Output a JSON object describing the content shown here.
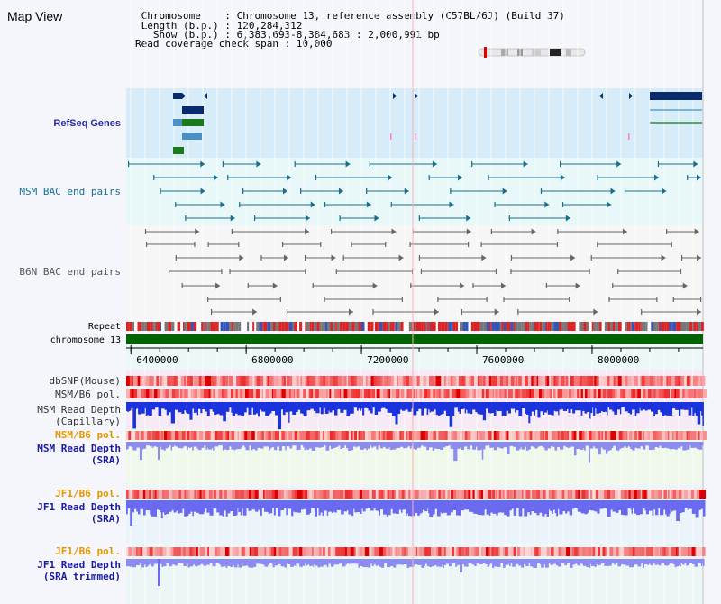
{
  "header": {
    "title": "Map View",
    "info_lines": [
      " Chromosome    : Chromosome 13, reference assembly (C57BL/6J) (Build 37)",
      " Length (b.p.) : 120,284,312",
      "   Show (b.p.) : 6,383,693-8,384,683 : 2,000,991 bp",
      "Read coverage check span : 10,000"
    ]
  },
  "tracks": {
    "refseq": "RefSeq Genes",
    "msm_bac": "MSM BAC end pairs",
    "b6n_bac": "B6N BAC end pairs",
    "repeat": "Repeat",
    "chromosome": "chromosome 13",
    "dbsnp": "dbSNP(Mouse)",
    "msm_b6_pol_1": "MSM/B6 pol.",
    "msm_read_depth_cap": "MSM Read Depth\n(Capillary)",
    "msm_b6_pol_2": "MSM/B6 pol.",
    "msm_read_depth_sra": "MSM Read Depth\n(SRA)",
    "jf1_b6_pol_1": "JF1/B6 pol.",
    "jf1_read_depth_sra": "JF1 Read Depth\n(SRA)",
    "jf1_b6_pol_2": "JF1/B6 pol.",
    "jf1_read_depth_trim": "JF1 Read Depth\n(SRA trimmed)"
  },
  "axis": {
    "ticks": [
      "6400000",
      "6800000",
      "7200000",
      "7600000",
      "8000000"
    ]
  },
  "colors": {
    "refseq_label": "#2b2b9e",
    "msm_label": "#1a6e8c",
    "b6n_label": "#555555",
    "orange_label": "#e69500",
    "blue_label": "#1a1aa0",
    "chromosome_bar": "#006400"
  }
}
